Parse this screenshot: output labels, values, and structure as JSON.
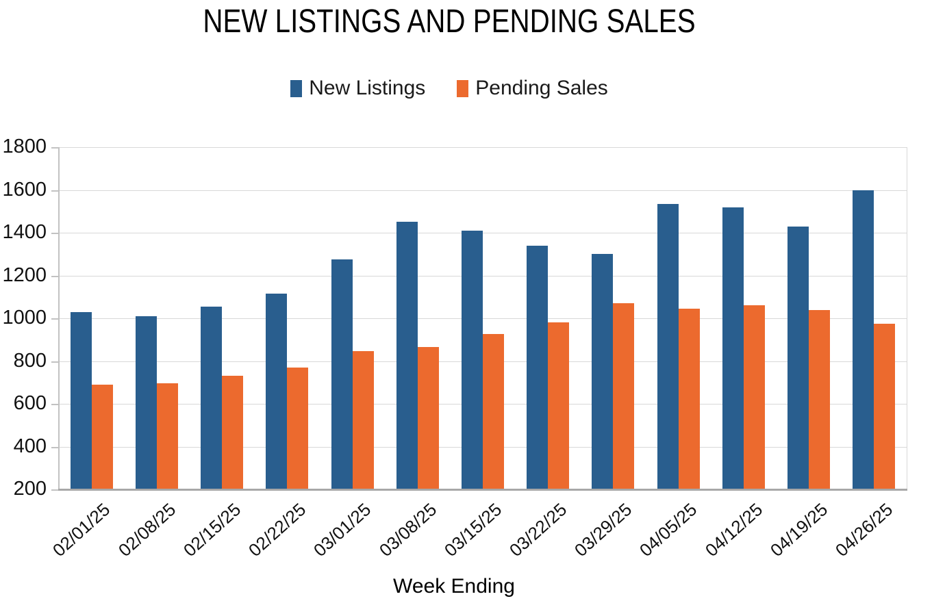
{
  "title": "NEW LISTINGS AND PENDING SALES",
  "legend": [
    {
      "label": "New Listings",
      "color": "#295E8E",
      "icon": "legend-swatch"
    },
    {
      "label": "Pending Sales",
      "color": "#EC6A2E",
      "icon": "legend-swatch"
    }
  ],
  "x_axis_title": "Week Ending",
  "colors": {
    "new_listings": "#295E8E",
    "pending_sales": "#EC6A2E",
    "gridline": "#d8d8d8",
    "axis": "#a8a8a8",
    "text": "#000000"
  },
  "chart_data": {
    "type": "bar",
    "title": "NEW LISTINGS AND PENDING SALES",
    "xlabel": "Week Ending",
    "ylabel": "",
    "categories": [
      "02/01/25",
      "02/08/25",
      "02/15/25",
      "02/22/25",
      "03/01/25",
      "03/08/25",
      "03/15/25",
      "03/22/25",
      "03/29/25",
      "04/05/25",
      "04/12/25",
      "04/19/25",
      "04/26/25"
    ],
    "series": [
      {
        "name": "New Listings",
        "color": "#295E8E",
        "values": [
          1030,
          1010,
          1055,
          1115,
          1275,
          1450,
          1410,
          1340,
          1300,
          1535,
          1520,
          1430,
          1600
        ]
      },
      {
        "name": "Pending Sales",
        "color": "#EC6A2E",
        "values": [
          690,
          695,
          730,
          770,
          845,
          865,
          925,
          980,
          1070,
          1045,
          1060,
          1040,
          975
        ]
      }
    ],
    "ylim": [
      200,
      1800
    ],
    "ytick_step": 200,
    "yticks": [
      200,
      400,
      600,
      800,
      1000,
      1200,
      1400,
      1600,
      1800
    ],
    "grid": "horizontal",
    "legend_position": "top",
    "baseline": 200
  }
}
